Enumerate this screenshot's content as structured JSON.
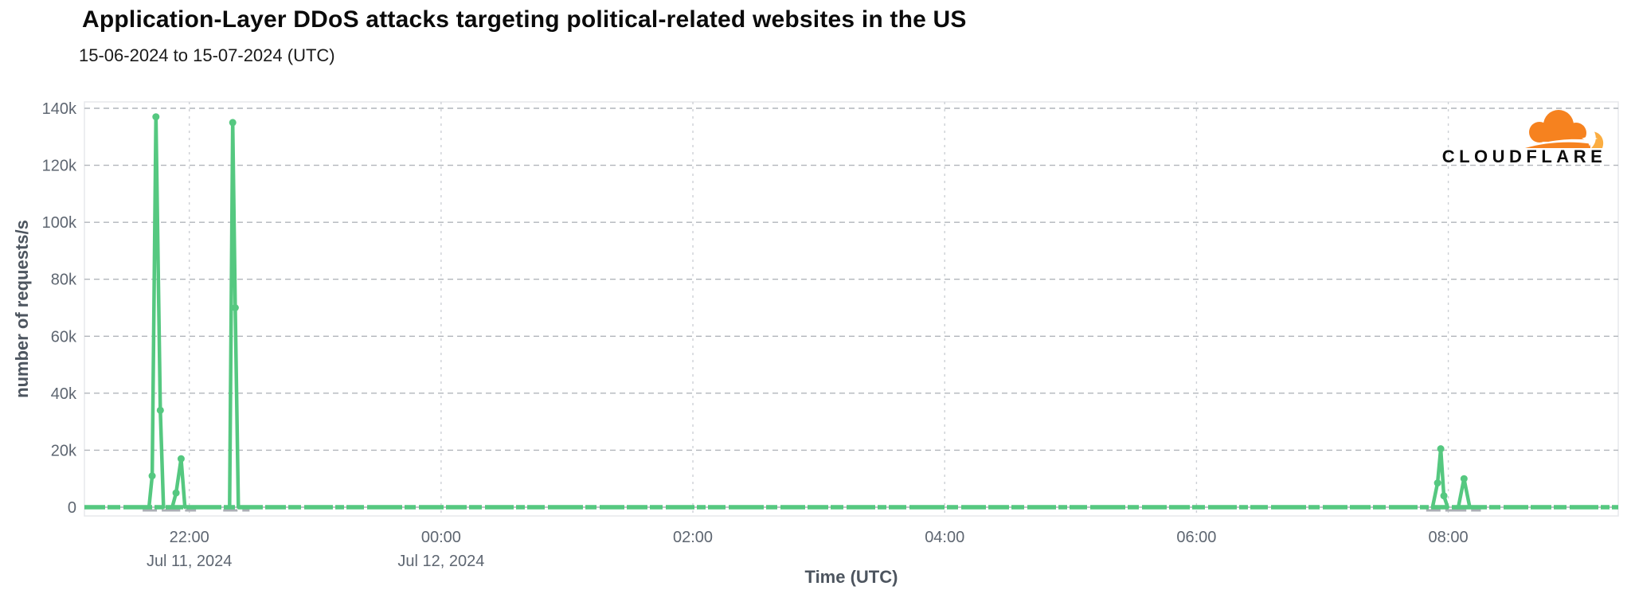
{
  "branding": {
    "wordmark": "CLOUDFLARE",
    "cloud_primary": "#F6821F",
    "cloud_secondary": "#FBAD41"
  },
  "chart_data": {
    "type": "line",
    "title": "Application-Layer DDoS attacks targeting political-related websites in the US",
    "subtitle": "15-06-2024 to 15-07-2024 (UTC)",
    "xlabel": "Time (UTC)",
    "ylabel": "number of requests/s",
    "x_unit": "hours since 2024-07-11 00:00 UTC",
    "x_domain": [
      21.167,
      33.35
    ],
    "ylim": [
      0,
      140000
    ],
    "grid": true,
    "legend": false,
    "yticks": [
      {
        "value": 0,
        "label": "0"
      },
      {
        "value": 20000,
        "label": "20k"
      },
      {
        "value": 40000,
        "label": "40k"
      },
      {
        "value": 60000,
        "label": "60k"
      },
      {
        "value": 80000,
        "label": "80k"
      },
      {
        "value": 100000,
        "label": "100k"
      },
      {
        "value": 120000,
        "label": "120k"
      },
      {
        "value": 140000,
        "label": "140k"
      }
    ],
    "xticks": [
      {
        "hour": 22,
        "label": "22:00",
        "sublabel": "Jul 11, 2024"
      },
      {
        "hour": 24,
        "label": "00:00",
        "sublabel": "Jul 12, 2024"
      },
      {
        "hour": 26,
        "label": "02:00",
        "sublabel": ""
      },
      {
        "hour": 28,
        "label": "04:00",
        "sublabel": ""
      },
      {
        "hour": 30,
        "label": "06:00",
        "sublabel": ""
      },
      {
        "hour": 32,
        "label": "08:00",
        "sublabel": ""
      }
    ],
    "series": [
      {
        "name": "requests per second",
        "baseline_value": 0,
        "spikes": [
          {
            "time_label": "Jul 11 ~21:44",
            "points": [
              [
                21.68,
                0
              ],
              [
                21.705,
                11000
              ],
              [
                21.735,
                137000
              ],
              [
                21.77,
                34000
              ],
              [
                21.795,
                0
              ]
            ]
          },
          {
            "time_label": "Jul 11 ~21:56",
            "points": [
              [
                21.865,
                0
              ],
              [
                21.895,
                5000
              ],
              [
                21.935,
                17000
              ],
              [
                21.965,
                0
              ]
            ]
          },
          {
            "time_label": "Jul 11 ~22:21",
            "points": [
              [
                22.32,
                0
              ],
              [
                22.345,
                135000
              ],
              [
                22.365,
                70000
              ],
              [
                22.39,
                0
              ]
            ]
          },
          {
            "time_label": "Jul 12 ~07:56",
            "points": [
              [
                31.875,
                0
              ],
              [
                31.915,
                8500
              ],
              [
                31.94,
                20500
              ],
              [
                31.965,
                4000
              ],
              [
                31.995,
                0
              ]
            ]
          },
          {
            "time_label": "Jul 12 ~08:08",
            "points": [
              [
                32.08,
                0
              ],
              [
                32.125,
                10000
              ],
              [
                32.17,
                0
              ]
            ]
          }
        ]
      }
    ],
    "colors": {
      "line": "#55C880",
      "grid_horizontal": "#b1b5bb",
      "grid_vertical": "#cdd0d5",
      "axis_zero": "#aaafb6",
      "plot_border": "#e7e8ec",
      "tick_text": "#5e6671"
    }
  }
}
